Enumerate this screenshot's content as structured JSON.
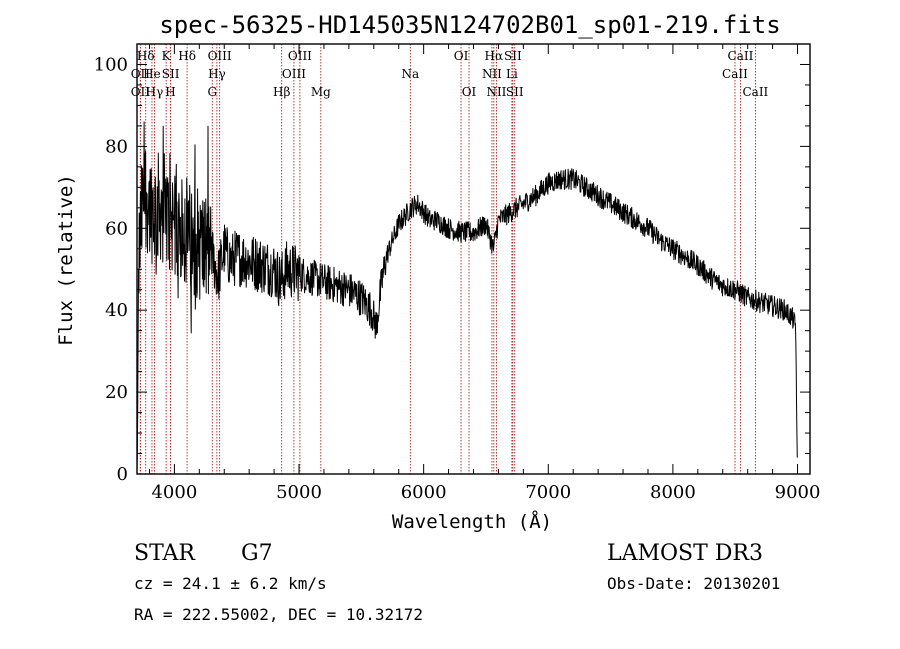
{
  "chart_data": {
    "type": "line",
    "title": "spec-56325-HD145035N124702B01_sp01-219.fits",
    "xlabel": "Wavelength (Å)",
    "ylabel": "Flux (relative)",
    "xlim": [
      3700,
      9100
    ],
    "ylim": [
      0,
      105
    ],
    "xticks": [
      4000,
      5000,
      6000,
      7000,
      8000,
      9000
    ],
    "yticks": [
      0,
      20,
      40,
      60,
      80,
      100
    ],
    "grid": false,
    "spectrum_anchors": [
      [
        3700,
        0
      ],
      [
        3705,
        10
      ],
      [
        3712,
        50
      ],
      [
        3730,
        60
      ],
      [
        3760,
        70
      ],
      [
        3800,
        66
      ],
      [
        3850,
        64
      ],
      [
        3900,
        66
      ],
      [
        3950,
        62
      ],
      [
        4000,
        63
      ],
      [
        4050,
        60
      ],
      [
        4100,
        58
      ],
      [
        4150,
        57
      ],
      [
        4200,
        56
      ],
      [
        4250,
        55
      ],
      [
        4300,
        54
      ],
      [
        4350,
        48
      ],
      [
        4400,
        55
      ],
      [
        4450,
        52
      ],
      [
        4500,
        53
      ],
      [
        4600,
        52
      ],
      [
        4700,
        51
      ],
      [
        4800,
        50
      ],
      [
        4850,
        47
      ],
      [
        4900,
        50
      ],
      [
        5000,
        49
      ],
      [
        5100,
        48
      ],
      [
        5200,
        47
      ],
      [
        5300,
        46
      ],
      [
        5400,
        45
      ],
      [
        5500,
        43
      ],
      [
        5580,
        40
      ],
      [
        5620,
        36
      ],
      [
        5660,
        46
      ],
      [
        5700,
        53
      ],
      [
        5750,
        57
      ],
      [
        5800,
        61
      ],
      [
        5850,
        63
      ],
      [
        5900,
        65
      ],
      [
        5950,
        66
      ],
      [
        6000,
        64
      ],
      [
        6050,
        62
      ],
      [
        6100,
        62
      ],
      [
        6200,
        60
      ],
      [
        6300,
        59
      ],
      [
        6400,
        59
      ],
      [
        6500,
        61
      ],
      [
        6560,
        55
      ],
      [
        6600,
        62
      ],
      [
        6700,
        64
      ],
      [
        6800,
        66
      ],
      [
        6900,
        68
      ],
      [
        7000,
        71
      ],
      [
        7100,
        72
      ],
      [
        7200,
        72
      ],
      [
        7300,
        70
      ],
      [
        7400,
        68
      ],
      [
        7500,
        66
      ],
      [
        7600,
        64
      ],
      [
        7700,
        62
      ],
      [
        7800,
        60
      ],
      [
        7900,
        57
      ],
      [
        8000,
        55
      ],
      [
        8100,
        53
      ],
      [
        8200,
        51
      ],
      [
        8300,
        48
      ],
      [
        8400,
        46
      ],
      [
        8500,
        45
      ],
      [
        8600,
        43
      ],
      [
        8700,
        42
      ],
      [
        8800,
        41
      ],
      [
        8900,
        40
      ],
      [
        8960,
        38
      ],
      [
        8985,
        36
      ],
      [
        8995,
        10
      ],
      [
        9000,
        0
      ]
    ],
    "line_markers": [
      {
        "label": "Hδ",
        "w": 3770,
        "row": 0
      },
      {
        "label": "OII",
        "w": 3727,
        "row": 1
      },
      {
        "label": "OII",
        "w": 3727,
        "row": 2
      },
      {
        "label": "He",
        "w": 3820,
        "row": 1
      },
      {
        "label": "Hγ",
        "w": 3840,
        "row": 2
      },
      {
        "label": "K",
        "w": 3934,
        "row": 0
      },
      {
        "label": "SII",
        "w": 3970,
        "row": 1
      },
      {
        "label": "H",
        "w": 3969,
        "row": 2
      },
      {
        "label": "Hδ",
        "w": 4102,
        "row": 0
      },
      {
        "label": "OIII",
        "w": 4363,
        "row": 0
      },
      {
        "label": "Hγ",
        "w": 4341,
        "row": 1
      },
      {
        "label": "G",
        "w": 4304,
        "row": 2
      },
      {
        "label": "Hβ",
        "w": 4861,
        "row": 2
      },
      {
        "label": "OIII",
        "w": 5007,
        "row": 0
      },
      {
        "label": "OIII",
        "w": 4959,
        "row": 1
      },
      {
        "label": "Mg",
        "w": 5175,
        "row": 2
      },
      {
        "label": "Na",
        "w": 5893,
        "row": 1
      },
      {
        "label": "OI",
        "w": 6300,
        "row": 0
      },
      {
        "label": "OI",
        "w": 6364,
        "row": 2
      },
      {
        "label": "Hα",
        "w": 6563,
        "row": 0
      },
      {
        "label": "NII",
        "w": 6548,
        "row": 1
      },
      {
        "label": "NII",
        "w": 6584,
        "row": 2
      },
      {
        "label": "SII",
        "w": 6716,
        "row": 0
      },
      {
        "label": "Li",
        "w": 6708,
        "row": 1
      },
      {
        "label": "SII",
        "w": 6731,
        "row": 2
      },
      {
        "label": "CaII",
        "w": 8542,
        "row": 0
      },
      {
        "label": "CaII",
        "w": 8498,
        "row": 1
      },
      {
        "label": "CaII",
        "w": 8662,
        "row": 2
      }
    ],
    "marker_color": "#b22222"
  },
  "info": {
    "object_class": "STAR",
    "subclass": "G7",
    "survey": "LAMOST DR3",
    "cz": "cz = 24.1 ± 6.2 km/s",
    "obs_date": "Obs-Date: 20130201",
    "coords": "RA = 222.55002, DEC =  10.32172"
  }
}
